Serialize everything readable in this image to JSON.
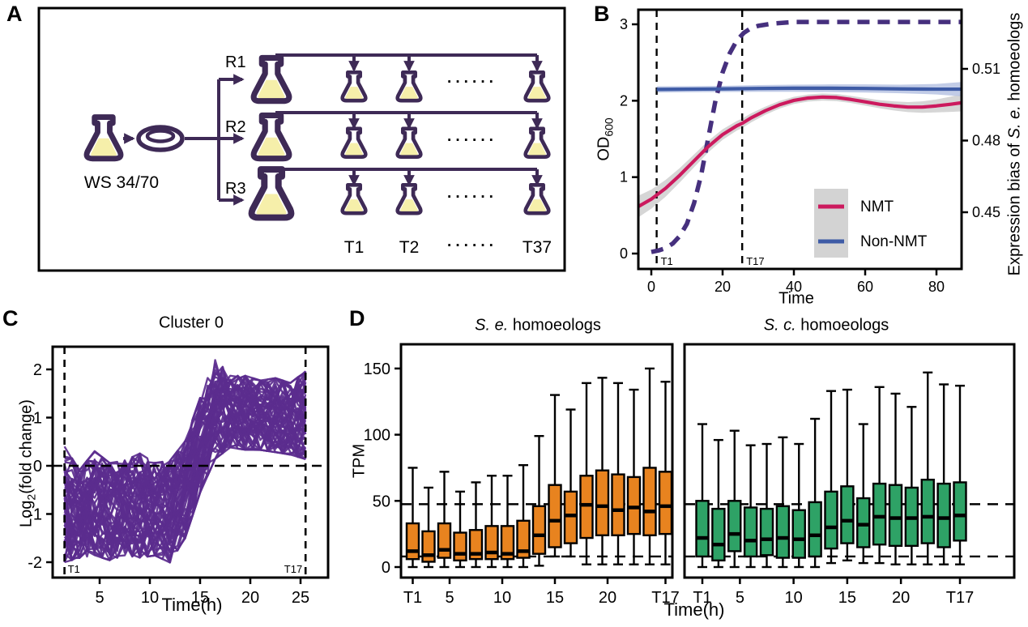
{
  "figure": {
    "panels": {
      "a": "A",
      "b": "B",
      "c": "C",
      "d": "D"
    }
  },
  "panelA": {
    "source_label": "WS 34/70",
    "replicates": [
      "R1",
      "R2",
      "R3"
    ],
    "timepoint_labels": [
      "T1",
      "T2",
      "T37"
    ],
    "dots": "······",
    "colors": {
      "outline": "#3E2A56",
      "liquid": "#F6EFAA"
    }
  },
  "chart_data": [
    {
      "panel": "B",
      "type": "line",
      "xlabel": "Time",
      "x_ticks": [
        0,
        20,
        40,
        60,
        80
      ],
      "left_axis": {
        "label_main": "OD",
        "label_sub": "600",
        "ticks": [
          0,
          1,
          2,
          3
        ]
      },
      "right_axis": {
        "label_pre": "Expression bias of ",
        "label_italic": "S. e.",
        "label_post": " homoeologs",
        "ticks": [
          0.45,
          0.48,
          0.51
        ]
      },
      "vlines": [
        {
          "x": 1.5,
          "label": "T1"
        },
        {
          "x": 25.5,
          "label": "T17"
        }
      ],
      "series": [
        {
          "name": "growth-od600",
          "axis": "left",
          "style": "dashed",
          "color": "#46307E",
          "width": 5.5,
          "x": [
            0,
            2,
            4,
            6,
            8,
            10,
            12,
            14,
            16,
            18,
            20,
            22,
            24,
            26,
            28,
            30,
            34,
            40,
            50,
            60,
            70,
            80,
            87
          ],
          "y": [
            0.02,
            0.04,
            0.07,
            0.13,
            0.23,
            0.39,
            0.66,
            1.03,
            1.52,
            2.0,
            2.37,
            2.62,
            2.79,
            2.89,
            2.95,
            2.98,
            3.01,
            3.03,
            3.03,
            3.03,
            3.03,
            3.03,
            3.03
          ]
        },
        {
          "name": "NMT",
          "axis": "right",
          "style": "solid",
          "color": "#CC1A5E",
          "width": 4.2,
          "ribbon_color": "#CFCFCF",
          "x": [
            -3.5,
            0,
            4,
            8,
            12,
            16,
            20,
            24,
            25.5,
            28,
            32,
            36,
            40,
            44,
            48,
            52,
            56,
            60,
            64,
            68,
            72,
            76,
            80,
            84,
            87
          ],
          "y": [
            0.4525,
            0.4555,
            0.46,
            0.4655,
            0.4715,
            0.4775,
            0.4825,
            0.4862,
            0.4872,
            0.4895,
            0.4925,
            0.495,
            0.4968,
            0.4978,
            0.4982,
            0.498,
            0.4972,
            0.4962,
            0.4952,
            0.4945,
            0.494,
            0.494,
            0.4945,
            0.4952,
            0.4958
          ],
          "ribbon": [
            0.0045,
            0.004,
            0.0035,
            0.003,
            0.0027,
            0.0024,
            0.0022,
            0.002,
            0.002,
            0.0019,
            0.0017,
            0.0016,
            0.0015,
            0.0015,
            0.0015,
            0.0015,
            0.0015,
            0.0016,
            0.0017,
            0.0019,
            0.0021,
            0.0024,
            0.0027,
            0.0032,
            0.0036
          ]
        },
        {
          "name": "Non-NMT",
          "axis": "right",
          "style": "solid",
          "color": "#3E5BA6",
          "width": 4.2,
          "ribbon_color": "#B7C3E3",
          "x": [
            1.5,
            10,
            20,
            30,
            40,
            50,
            60,
            70,
            80,
            87
          ],
          "y": [
            0.5014,
            0.5015,
            0.5016,
            0.5018,
            0.5019,
            0.5019,
            0.5018,
            0.5016,
            0.5015,
            0.5015
          ],
          "ribbon": [
            0.0013,
            0.0013,
            0.0013,
            0.0014,
            0.0015,
            0.0016,
            0.0017,
            0.0018,
            0.0022,
            0.003
          ]
        }
      ],
      "legend": {
        "bg": "#D3D3D3",
        "items": [
          {
            "label": "NMT",
            "color": "#CC1A5E"
          },
          {
            "label": "Non-NMT",
            "color": "#3E5BA6"
          }
        ]
      }
    },
    {
      "panel": "C",
      "type": "line-ensemble",
      "title": "Cluster 0",
      "xlabel": "Time(h)",
      "ylabel": {
        "main": "Log",
        "sub": "2",
        "rest": "(fold change)"
      },
      "x_ticks": [
        5,
        10,
        15,
        20,
        25
      ],
      "y_ticks": [
        -2,
        -1,
        0,
        1,
        2
      ],
      "color": "#5B2D8E",
      "n_lines": 60,
      "band": {
        "x": [
          1.5,
          3,
          4.5,
          6,
          7.5,
          9,
          10.5,
          12,
          13.5,
          15,
          16.5,
          18,
          19.5,
          21,
          22.5,
          24,
          25.5
        ],
        "low": [
          -2.05,
          -1.95,
          -1.9,
          -2.0,
          -1.9,
          -1.95,
          -1.9,
          -2.05,
          -1.55,
          -0.6,
          0.1,
          0.35,
          0.3,
          0.3,
          0.25,
          0.2,
          0.1
        ],
        "high": [
          0.45,
          -0.05,
          0.35,
          0.1,
          0.15,
          0.3,
          0.1,
          0.15,
          0.55,
          1.45,
          2.28,
          1.9,
          1.9,
          1.8,
          1.85,
          1.75,
          2.0
        ]
      },
      "hline": 0,
      "vlines": [
        {
          "x": 1.5,
          "label": "T1"
        },
        {
          "x": 25.5,
          "label": "T17"
        }
      ]
    },
    {
      "panel": "D-left",
      "type": "box",
      "title": {
        "italic": "S. e.",
        "rest": " homoeologs"
      },
      "ylabel": "TPM",
      "xlabel": "Time(h)",
      "y_ticks": [
        0,
        50,
        100,
        150
      ],
      "x_ticks": [
        {
          "x": 1.5,
          "label": "T1"
        },
        {
          "x": 5,
          "label": "5"
        },
        {
          "x": 10,
          "label": "10"
        },
        {
          "x": 15,
          "label": "15"
        },
        {
          "x": 20,
          "label": "20"
        },
        {
          "x": 25.5,
          "label": "T17"
        }
      ],
      "hlines": [
        47.5,
        8
      ],
      "color": "#E8831F",
      "positions": [
        1.5,
        3,
        4.5,
        6,
        7.5,
        9,
        10.5,
        12,
        13.5,
        15,
        16.5,
        18,
        19.5,
        21,
        22.5,
        24,
        25.5
      ],
      "boxes": [
        {
          "lo": 0,
          "q1": 6,
          "me": 12,
          "q3": 33,
          "hi": 75
        },
        {
          "lo": 0,
          "q1": 4,
          "me": 9,
          "q3": 27,
          "hi": 60
        },
        {
          "lo": 0,
          "q1": 7,
          "me": 13,
          "q3": 33,
          "hi": 72
        },
        {
          "lo": 0,
          "q1": 5,
          "me": 10,
          "q3": 26,
          "hi": 57
        },
        {
          "lo": 0,
          "q1": 6,
          "me": 10,
          "q3": 28,
          "hi": 64
        },
        {
          "lo": 0,
          "q1": 6,
          "me": 11,
          "q3": 31,
          "hi": 69
        },
        {
          "lo": 0,
          "q1": 6,
          "me": 10,
          "q3": 31,
          "hi": 69
        },
        {
          "lo": 0,
          "q1": 7,
          "me": 12,
          "q3": 35,
          "hi": 77
        },
        {
          "lo": 1,
          "q1": 10,
          "me": 24,
          "q3": 46,
          "hi": 99
        },
        {
          "lo": 8,
          "q1": 15,
          "me": 35,
          "q3": 62,
          "hi": 130
        },
        {
          "lo": 8,
          "q1": 18,
          "me": 39,
          "q3": 57,
          "hi": 119
        },
        {
          "lo": 2,
          "q1": 22,
          "me": 47,
          "q3": 69,
          "hi": 139
        },
        {
          "lo": 2,
          "q1": 24,
          "me": 46,
          "q3": 73,
          "hi": 143
        },
        {
          "lo": 2,
          "q1": 24,
          "me": 43,
          "q3": 70,
          "hi": 139
        },
        {
          "lo": 2,
          "q1": 25,
          "me": 45,
          "q3": 68,
          "hi": 134
        },
        {
          "lo": 2,
          "q1": 24,
          "me": 42,
          "q3": 75,
          "hi": 150
        },
        {
          "lo": 2,
          "q1": 25,
          "me": 46,
          "q3": 72,
          "hi": 140
        }
      ]
    },
    {
      "panel": "D-right",
      "type": "box",
      "title": {
        "italic": "S. c.",
        "rest": " homoeologs"
      },
      "x_ticks": [
        {
          "x": 1.5,
          "label": "T1"
        },
        {
          "x": 5,
          "label": "5"
        },
        {
          "x": 10,
          "label": "10"
        },
        {
          "x": 15,
          "label": "15"
        },
        {
          "x": 20,
          "label": "20"
        },
        {
          "x": 25.5,
          "label": "T17"
        }
      ],
      "hlines": [
        47.5,
        8
      ],
      "color": "#2EA266",
      "positions": [
        1.5,
        3,
        4.5,
        6,
        7.5,
        9,
        10.5,
        12,
        13.5,
        15,
        16.5,
        18,
        19.5,
        21,
        22.5,
        24,
        25.5
      ],
      "boxes": [
        {
          "lo": 0,
          "q1": 8,
          "me": 22,
          "q3": 50,
          "hi": 108
        },
        {
          "lo": 0,
          "q1": 5,
          "me": 17,
          "q3": 44,
          "hi": 96
        },
        {
          "lo": 0,
          "q1": 12,
          "me": 25,
          "q3": 50,
          "hi": 103
        },
        {
          "lo": 0,
          "q1": 8,
          "me": 20,
          "q3": 45,
          "hi": 92
        },
        {
          "lo": 0,
          "q1": 9,
          "me": 21,
          "q3": 44,
          "hi": 93
        },
        {
          "lo": 0,
          "q1": 7,
          "me": 22,
          "q3": 46,
          "hi": 98
        },
        {
          "lo": 0,
          "q1": 7,
          "me": 21,
          "q3": 43,
          "hi": 93
        },
        {
          "lo": 0,
          "q1": 8,
          "me": 24,
          "q3": 49,
          "hi": 112
        },
        {
          "lo": 3,
          "q1": 14,
          "me": 30,
          "q3": 57,
          "hi": 133
        },
        {
          "lo": 5,
          "q1": 18,
          "me": 35,
          "q3": 61,
          "hi": 134
        },
        {
          "lo": 3,
          "q1": 15,
          "me": 32,
          "q3": 52,
          "hi": 108
        },
        {
          "lo": 3,
          "q1": 17,
          "me": 38,
          "q3": 63,
          "hi": 136
        },
        {
          "lo": 2,
          "q1": 16,
          "me": 37,
          "q3": 62,
          "hi": 131
        },
        {
          "lo": 2,
          "q1": 16,
          "me": 37,
          "q3": 60,
          "hi": 121
        },
        {
          "lo": 2,
          "q1": 18,
          "me": 38,
          "q3": 66,
          "hi": 147
        },
        {
          "lo": 2,
          "q1": 15,
          "me": 37,
          "q3": 63,
          "hi": 138
        },
        {
          "lo": 2,
          "q1": 20,
          "me": 39,
          "q3": 64,
          "hi": 137
        }
      ]
    }
  ]
}
